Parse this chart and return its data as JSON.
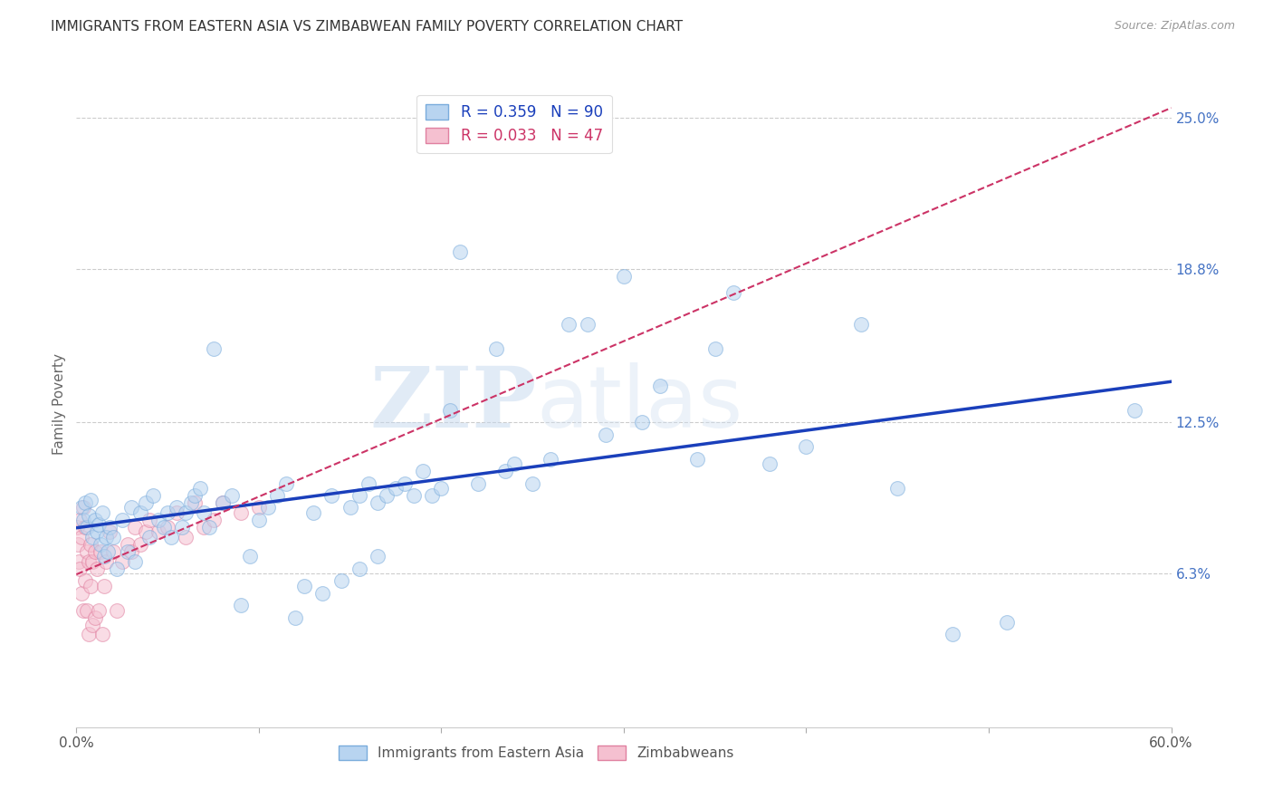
{
  "title": "IMMIGRANTS FROM EASTERN ASIA VS ZIMBABWEAN FAMILY POVERTY CORRELATION CHART",
  "source": "Source: ZipAtlas.com",
  "ylabel": "Family Poverty",
  "xlim": [
    0.0,
    0.6
  ],
  "ylim": [
    0.0,
    0.265
  ],
  "yticks": [
    0.063,
    0.125,
    0.188,
    0.25
  ],
  "ytick_labels": [
    "6.3%",
    "12.5%",
    "18.8%",
    "25.0%"
  ],
  "xtick_labels_show": [
    "0.0%",
    "60.0%"
  ],
  "blue_color": "#b8d4f0",
  "blue_edge_color": "#7aacdc",
  "pink_color": "#f5c0d0",
  "pink_edge_color": "#e080a0",
  "trend_blue": "#1a3fbb",
  "trend_pink": "#cc3366",
  "R_blue": 0.359,
  "N_blue": 90,
  "R_pink": 0.033,
  "N_pink": 47,
  "blue_x": [
    0.003,
    0.004,
    0.005,
    0.006,
    0.007,
    0.008,
    0.009,
    0.01,
    0.011,
    0.012,
    0.013,
    0.014,
    0.015,
    0.016,
    0.017,
    0.018,
    0.02,
    0.022,
    0.025,
    0.028,
    0.03,
    0.032,
    0.035,
    0.038,
    0.04,
    0.042,
    0.045,
    0.048,
    0.05,
    0.052,
    0.055,
    0.058,
    0.06,
    0.063,
    0.065,
    0.068,
    0.07,
    0.073,
    0.075,
    0.08,
    0.085,
    0.09,
    0.095,
    0.1,
    0.105,
    0.11,
    0.115,
    0.12,
    0.125,
    0.13,
    0.14,
    0.15,
    0.155,
    0.16,
    0.165,
    0.17,
    0.175,
    0.18,
    0.185,
    0.19,
    0.195,
    0.2,
    0.205,
    0.21,
    0.22,
    0.23,
    0.235,
    0.24,
    0.25,
    0.26,
    0.28,
    0.3,
    0.32,
    0.34,
    0.35,
    0.36,
    0.38,
    0.4,
    0.43,
    0.45,
    0.48,
    0.51,
    0.58,
    0.31,
    0.27,
    0.29,
    0.135,
    0.145,
    0.155,
    0.165
  ],
  "blue_y": [
    0.09,
    0.085,
    0.092,
    0.082,
    0.087,
    0.093,
    0.078,
    0.085,
    0.08,
    0.083,
    0.075,
    0.088,
    0.07,
    0.078,
    0.072,
    0.082,
    0.078,
    0.065,
    0.085,
    0.072,
    0.09,
    0.068,
    0.088,
    0.092,
    0.078,
    0.095,
    0.085,
    0.082,
    0.088,
    0.078,
    0.09,
    0.082,
    0.088,
    0.092,
    0.095,
    0.098,
    0.088,
    0.082,
    0.155,
    0.092,
    0.095,
    0.05,
    0.07,
    0.085,
    0.09,
    0.095,
    0.1,
    0.045,
    0.058,
    0.088,
    0.095,
    0.09,
    0.095,
    0.1,
    0.092,
    0.095,
    0.098,
    0.1,
    0.095,
    0.105,
    0.095,
    0.098,
    0.13,
    0.195,
    0.1,
    0.155,
    0.105,
    0.108,
    0.1,
    0.11,
    0.165,
    0.185,
    0.14,
    0.11,
    0.155,
    0.178,
    0.108,
    0.115,
    0.165,
    0.098,
    0.038,
    0.043,
    0.13,
    0.125,
    0.165,
    0.12,
    0.055,
    0.06,
    0.065,
    0.07
  ],
  "pink_x": [
    0.0005,
    0.001,
    0.0015,
    0.002,
    0.002,
    0.003,
    0.003,
    0.004,
    0.004,
    0.005,
    0.005,
    0.006,
    0.006,
    0.007,
    0.007,
    0.008,
    0.008,
    0.009,
    0.009,
    0.01,
    0.01,
    0.011,
    0.012,
    0.013,
    0.014,
    0.015,
    0.016,
    0.018,
    0.02,
    0.022,
    0.025,
    0.028,
    0.03,
    0.032,
    0.035,
    0.038,
    0.04,
    0.045,
    0.05,
    0.055,
    0.06,
    0.065,
    0.07,
    0.075,
    0.08,
    0.09,
    0.1
  ],
  "pink_y": [
    0.082,
    0.075,
    0.068,
    0.085,
    0.065,
    0.078,
    0.055,
    0.09,
    0.048,
    0.082,
    0.06,
    0.072,
    0.048,
    0.068,
    0.038,
    0.075,
    0.058,
    0.068,
    0.042,
    0.072,
    0.045,
    0.065,
    0.048,
    0.072,
    0.038,
    0.058,
    0.068,
    0.08,
    0.072,
    0.048,
    0.068,
    0.075,
    0.072,
    0.082,
    0.075,
    0.08,
    0.085,
    0.08,
    0.082,
    0.088,
    0.078,
    0.092,
    0.082,
    0.085,
    0.092,
    0.088,
    0.09
  ],
  "watermark_zip": "ZIP",
  "watermark_atlas": "atlas",
  "marker_size": 130,
  "alpha": 0.55,
  "legend_R_blue_text": "R = 0.359   N = 90",
  "legend_R_pink_text": "R = 0.033   N = 47",
  "legend_blue_label": "Immigrants from Eastern Asia",
  "legend_pink_label": "Zimbabweans",
  "background_color": "#ffffff",
  "grid_color": "#cccccc",
  "title_color": "#333333",
  "source_color": "#999999",
  "ylabel_color": "#666666"
}
